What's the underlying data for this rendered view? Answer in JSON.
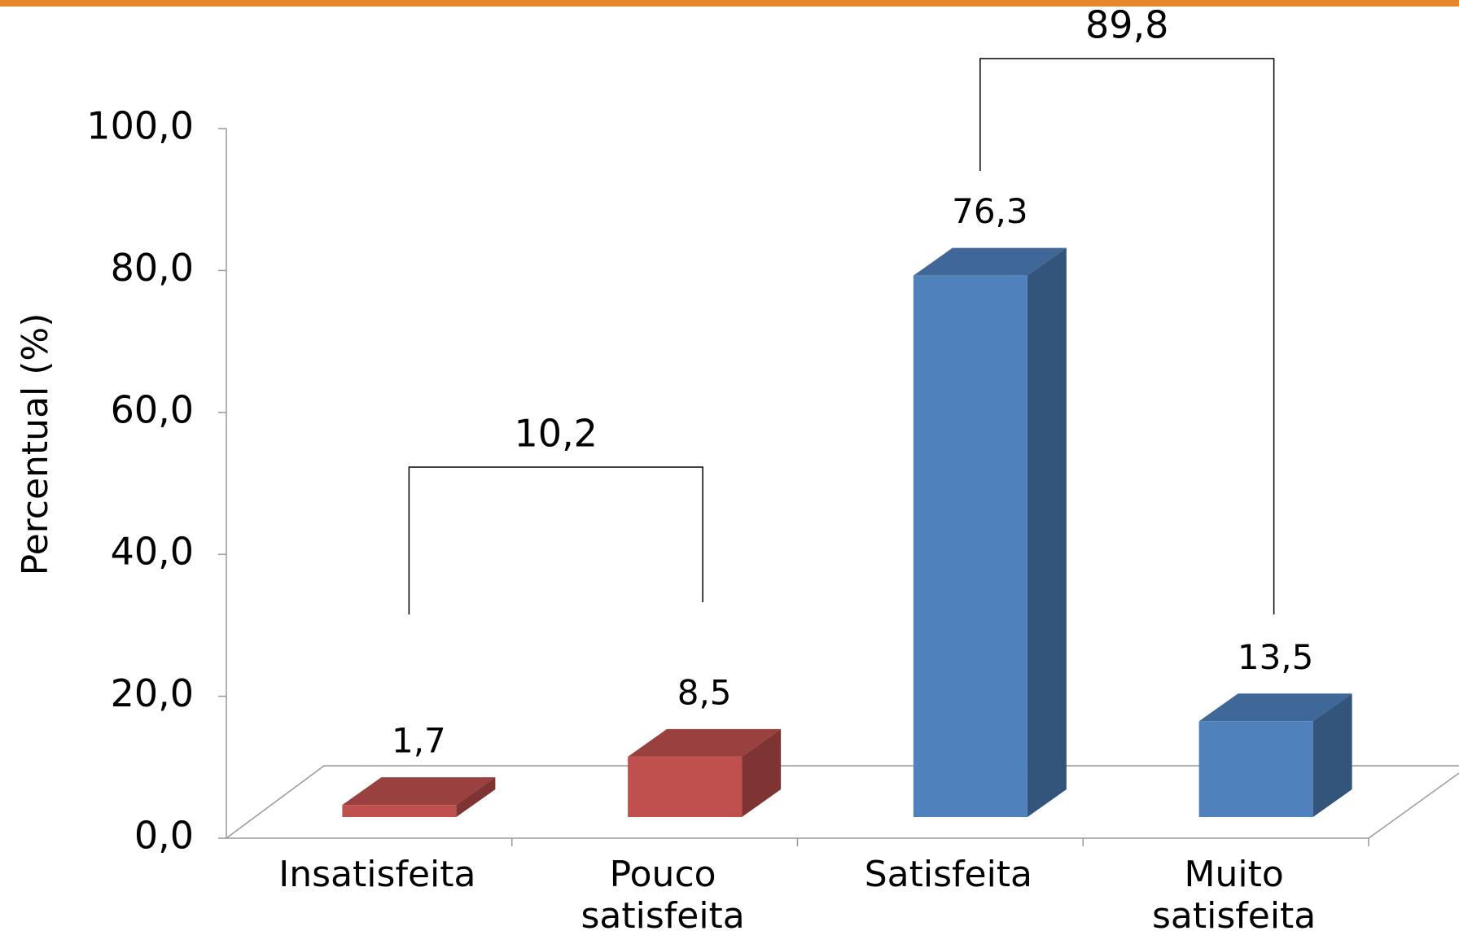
{
  "chart_data": {
    "type": "bar3d",
    "y_label": "Percentual (%)",
    "categories": [
      "Insatisfeita",
      "Pouco satisfeita",
      "Satisfeita",
      "Muito satisfeita"
    ],
    "values": [
      1.7,
      8.5,
      76.3,
      13.5
    ],
    "value_labels": [
      "1,7",
      "8,5",
      "76,3",
      "13,5"
    ],
    "colors": [
      "#c0504d",
      "#c0504d",
      "#4f81bd",
      "#4f81bd"
    ],
    "ylim": [
      0,
      100
    ],
    "yticks": [
      {
        "value": 0,
        "label": "0,0"
      },
      {
        "value": 20,
        "label": "20,0"
      },
      {
        "value": 40,
        "label": "40,0"
      },
      {
        "value": 60,
        "label": "60,0"
      },
      {
        "value": 80,
        "label": "80,0"
      },
      {
        "value": 100,
        "label": "100,0"
      }
    ],
    "annotations": [
      "10,2",
      "89,8"
    ]
  }
}
